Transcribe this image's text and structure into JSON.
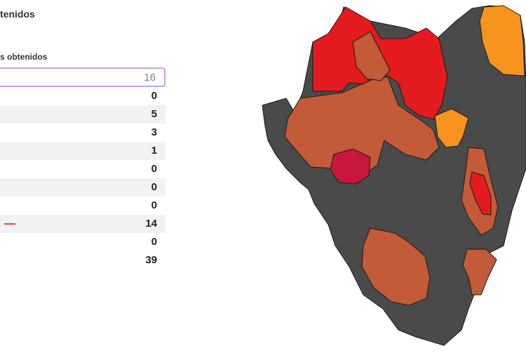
{
  "header": {
    "title": "tenidos",
    "subtitle": "s obtenidos"
  },
  "results": [
    {
      "value": "16"
    },
    {
      "value": "0"
    },
    {
      "value": "5"
    },
    {
      "value": "3"
    },
    {
      "value": "1"
    },
    {
      "value": "0"
    },
    {
      "value": "0"
    },
    {
      "value": "0"
    },
    {
      "value": "14"
    },
    {
      "value": "0"
    },
    {
      "value": "39"
    }
  ],
  "map": {
    "colors": {
      "red": "#e31b1e",
      "crimson": "#c8163c",
      "brown": "#c35a38",
      "orange": "#f7941d",
      "gray": "#4a4a4a",
      "border": "#1a1a1a"
    }
  }
}
